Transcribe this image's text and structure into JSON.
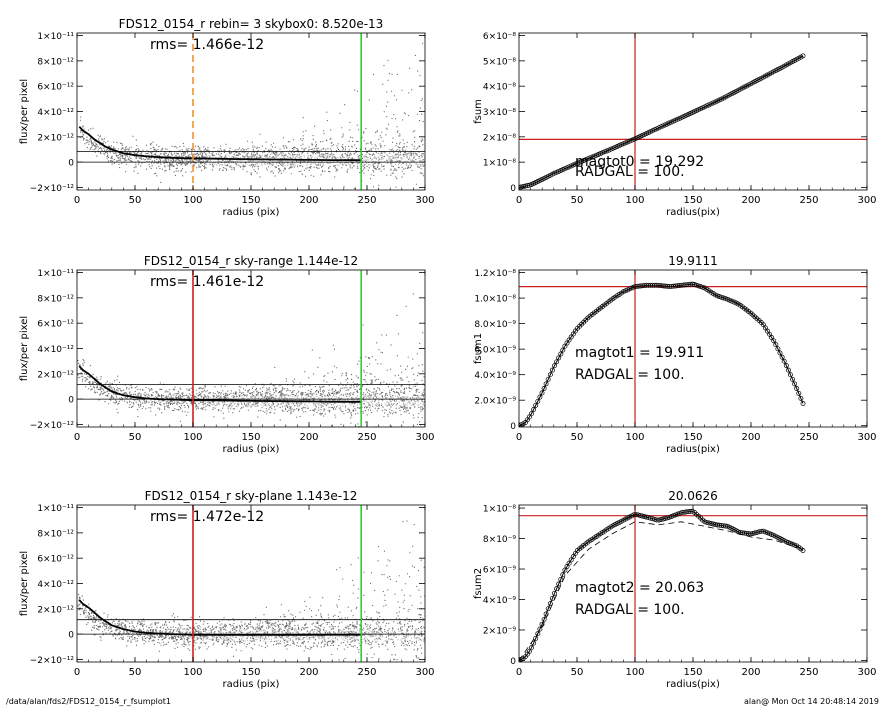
{
  "footer": {
    "left": "/data/alan/fds2/FDS12_0154_r_fsumplot1",
    "right": "alan@  Mon Oct 14 20:48:14 2019"
  },
  "colors": {
    "scatter_dark": "#6e6e6e",
    "scatter_light": "#b4b4b4",
    "profile": "#000000",
    "red": "#cc1f1f",
    "green": "#33cc33",
    "orange": "#f0932b"
  },
  "chart_data": [
    {
      "type": "scatter",
      "title": "FDS12_0154_r rebin= 3    skybox0:  8.520e-13",
      "annotation": "rms= 1.466e-12",
      "xlabel": "radius (pix)",
      "ylabel": "flux/per pixel",
      "xlim": [
        0,
        300
      ],
      "ylim": [
        -2.2e-12,
        1.02e-11
      ],
      "xticks": [
        0,
        50,
        100,
        150,
        200,
        250,
        300
      ],
      "xtick_labels": [
        "0",
        "50",
        "100",
        "150",
        "200",
        "250",
        "300"
      ],
      "yticks": [
        -2e-12,
        0,
        2e-12,
        4e-12,
        6e-12,
        8e-12,
        1e-11
      ],
      "ytick_labels": [
        "−2×10⁻¹²",
        "0",
        "2×10⁻¹²",
        "4×10⁻¹²",
        "6×10⁻¹²",
        "8×10⁻¹²",
        "1×10⁻¹¹"
      ],
      "hlines": [
        0,
        8.52e-13
      ],
      "vlines": [
        {
          "x": 100,
          "color": "orange",
          "dash": true
        },
        {
          "x": 245,
          "color": "green",
          "dash": false
        }
      ],
      "profile": {
        "x": [
          2,
          5,
          10,
          15,
          20,
          25,
          30,
          40,
          50,
          60,
          70,
          80,
          90,
          100,
          120,
          140,
          160,
          180,
          200,
          220,
          245
        ],
        "y": [
          2.8e-12,
          2.5e-12,
          2.2e-12,
          1.8e-12,
          1.5e-12,
          1.2e-12,
          1e-12,
          7e-13,
          5.5e-13,
          4.5e-13,
          4e-13,
          3.5e-13,
          3.2e-13,
          3e-13,
          2.7e-13,
          2.4e-13,
          2.2e-13,
          2e-13,
          1.8e-13,
          1.6e-13,
          1.5e-13
        ]
      },
      "scatter_model": {
        "n": 2300,
        "xmax": 300,
        "core_amp": 2.6e-12,
        "core_scale": 18,
        "offset": 2e-13,
        "noise": 5e-13,
        "outer_growth": 1.6e-12
      }
    },
    {
      "type": "line",
      "title": "",
      "annotations": [
        "magtot0 = 19.292",
        "RADGAL =    100."
      ],
      "xlabel": "radius(pix)",
      "ylabel": "fsum",
      "xlim": [
        0,
        300
      ],
      "ylim": [
        -1e-09,
        6.1e-08
      ],
      "xticks": [
        0,
        50,
        100,
        150,
        200,
        250,
        300
      ],
      "xtick_labels": [
        "0",
        "50",
        "100",
        "150",
        "200",
        "250",
        "300"
      ],
      "yticks": [
        0,
        1e-08,
        2e-08,
        3e-08,
        4e-08,
        5e-08,
        6e-08
      ],
      "ytick_labels": [
        "0",
        "1×10⁻⁸",
        "2×10⁻⁸",
        "3×10⁻⁸",
        "4×10⁻⁸",
        "5×10⁻⁸",
        "6×10⁻⁸"
      ],
      "hline": 1.9e-08,
      "vline": 100,
      "curve": {
        "x": [
          0,
          10,
          20,
          30,
          50,
          75,
          100,
          125,
          150,
          175,
          200,
          225,
          245
        ],
        "y": [
          0,
          1e-09,
          3.2e-09,
          5.5e-09,
          9.5e-09,
          1.43e-08,
          1.92e-08,
          2.45e-08,
          2.97e-08,
          3.5e-08,
          4.1e-08,
          4.7e-08,
          5.2e-08
        ]
      }
    },
    {
      "type": "scatter",
      "title": "FDS12_0154_r sky-range  1.144e-12",
      "annotation": "rms= 1.461e-12",
      "xlabel": "radius (pix)",
      "ylabel": "flux/per pixel",
      "xlim": [
        0,
        300
      ],
      "ylim": [
        -2.2e-12,
        1.02e-11
      ],
      "xticks": [
        0,
        50,
        100,
        150,
        200,
        250,
        300
      ],
      "xtick_labels": [
        "0",
        "50",
        "100",
        "150",
        "200",
        "250",
        "300"
      ],
      "yticks": [
        -2e-12,
        0,
        2e-12,
        4e-12,
        6e-12,
        8e-12,
        1e-11
      ],
      "ytick_labels": [
        "−2×10⁻¹²",
        "0",
        "2×10⁻¹²",
        "4×10⁻¹²",
        "6×10⁻¹²",
        "8×10⁻¹²",
        "1×10⁻¹¹"
      ],
      "hlines": [
        0,
        1.144e-12
      ],
      "vlines": [
        {
          "x": 100,
          "color": "red",
          "dash": false
        },
        {
          "x": 245,
          "color": "green",
          "dash": false
        }
      ],
      "profile": {
        "x": [
          2,
          5,
          10,
          15,
          20,
          25,
          30,
          40,
          50,
          60,
          70,
          80,
          90,
          100,
          120,
          140,
          160,
          180,
          200,
          220,
          245
        ],
        "y": [
          2.6e-12,
          2.3e-12,
          2e-12,
          1.6e-12,
          1.2e-12,
          9e-13,
          6e-13,
          3e-13,
          1.5e-13,
          5e-14,
          0,
          -3e-14,
          -5e-14,
          -8e-14,
          -1e-13,
          -1.2e-13,
          -1.5e-13,
          -1.6e-13,
          -1.8e-13,
          -2e-13,
          -2.1e-13
        ]
      },
      "scatter_model": {
        "n": 2300,
        "xmax": 300,
        "core_amp": 2.6e-12,
        "core_scale": 18,
        "offset": -1.2e-13,
        "noise": 5e-13,
        "outer_growth": 1.6e-12
      }
    },
    {
      "type": "line",
      "title": "19.9111",
      "annotations": [
        "magtot1 =  19.911",
        "RADGAL =    100."
      ],
      "xlabel": "radius(pix)",
      "ylabel": "fsum1",
      "xlim": [
        0,
        300
      ],
      "ylim": [
        -1e-10,
        1.22e-08
      ],
      "xticks": [
        0,
        50,
        100,
        150,
        200,
        250,
        300
      ],
      "xtick_labels": [
        "0",
        "50",
        "100",
        "150",
        "200",
        "250",
        "300"
      ],
      "yticks": [
        0,
        2e-09,
        4e-09,
        6e-09,
        8e-09,
        1e-08,
        1.2e-08
      ],
      "ytick_labels": [
        "0",
        "2.0×10⁻⁹",
        "4.0×10⁻⁹",
        "6.0×10⁻⁹",
        "8.0×10⁻⁹",
        "1.0×10⁻⁸",
        "1.2×10⁻⁸"
      ],
      "hline": 1.09e-08,
      "vline": 100,
      "curve": {
        "x": [
          0,
          5,
          10,
          20,
          30,
          40,
          50,
          60,
          70,
          80,
          90,
          100,
          110,
          120,
          130,
          140,
          150,
          160,
          170,
          180,
          190,
          200,
          210,
          220,
          230,
          240,
          245
        ],
        "y": [
          0,
          2e-10,
          8e-10,
          2.6e-09,
          4.6e-09,
          6.3e-09,
          7.6e-09,
          8.5e-09,
          9.2e-09,
          9.9e-09,
          1.05e-08,
          1.09e-08,
          1.1e-08,
          1.1e-08,
          1.09e-08,
          1.1e-08,
          1.11e-08,
          1.08e-08,
          1.02e-08,
          9.9e-09,
          9.5e-09,
          8.8e-09,
          8e-09,
          6.6e-09,
          4.8e-09,
          2.8e-09,
          1.7e-09
        ]
      }
    },
    {
      "type": "scatter",
      "title": "FDS12_0154_r sky-plane  1.143e-12",
      "annotation": "rms= 1.472e-12",
      "xlabel": "radius (pix)",
      "ylabel": "flux/per pixel",
      "xlim": [
        0,
        300
      ],
      "ylim": [
        -2.2e-12,
        1.02e-11
      ],
      "xticks": [
        0,
        50,
        100,
        150,
        200,
        250,
        300
      ],
      "xtick_labels": [
        "0",
        "50",
        "100",
        "150",
        "200",
        "250",
        "300"
      ],
      "yticks": [
        -2e-12,
        0,
        2e-12,
        4e-12,
        6e-12,
        8e-12,
        1e-11
      ],
      "ytick_labels": [
        "−2×10⁻¹²",
        "0",
        "2×10⁻¹²",
        "4×10⁻¹²",
        "6×10⁻¹²",
        "8×10⁻¹²",
        "1×10⁻¹¹"
      ],
      "hlines": [
        0,
        1.143e-12
      ],
      "vlines": [
        {
          "x": 100,
          "color": "red",
          "dash": false
        },
        {
          "x": 245,
          "color": "green",
          "dash": false
        }
      ],
      "profile": {
        "x": [
          2,
          5,
          10,
          15,
          20,
          25,
          30,
          40,
          50,
          60,
          70,
          80,
          90,
          100,
          120,
          140,
          160,
          180,
          200,
          220,
          245
        ],
        "y": [
          2.7e-12,
          2.4e-12,
          2.1e-12,
          1.7e-12,
          1.3e-12,
          1e-12,
          7e-13,
          4e-13,
          2e-13,
          1e-13,
          5e-14,
          0,
          -2e-14,
          -4e-14,
          -5e-14,
          -6e-14,
          -5e-14,
          -6e-14,
          -5e-14,
          -4e-14,
          -4e-14
        ]
      },
      "scatter_model": {
        "n": 2300,
        "xmax": 300,
        "core_amp": 2.6e-12,
        "core_scale": 18,
        "offset": -5e-14,
        "noise": 5e-13,
        "outer_growth": 1.6e-12
      }
    },
    {
      "type": "line",
      "title": "20.0626",
      "annotations": [
        "magtot2 =  20.063",
        "RADGAL =    100."
      ],
      "xlabel": "radius(pix)",
      "ylabel": "fsum2",
      "xlim": [
        0,
        300
      ],
      "ylim": [
        -1e-10,
        1.02e-08
      ],
      "xticks": [
        0,
        50,
        100,
        150,
        200,
        250,
        300
      ],
      "xtick_labels": [
        "0",
        "50",
        "100",
        "150",
        "200",
        "250",
        "300"
      ],
      "yticks": [
        0,
        2e-09,
        4e-09,
        6e-09,
        8e-09,
        1e-08
      ],
      "ytick_labels": [
        "0",
        "2×10⁻⁹",
        "4×10⁻⁹",
        "6×10⁻⁹",
        "8×10⁻⁹",
        "1×10⁻⁸"
      ],
      "hline": 9.5e-09,
      "vline": 100,
      "curve": {
        "x": [
          0,
          5,
          10,
          20,
          30,
          40,
          50,
          60,
          70,
          80,
          90,
          100,
          110,
          120,
          130,
          140,
          150,
          160,
          170,
          180,
          190,
          200,
          210,
          220,
          230,
          240,
          245
        ],
        "y": [
          0,
          2e-10,
          7e-10,
          2.4e-09,
          4.3e-09,
          6e-09,
          7.2e-09,
          7.8e-09,
          8.3e-09,
          8.8e-09,
          9.2e-09,
          9.6e-09,
          9.4e-09,
          9.2e-09,
          9.4e-09,
          9.7e-09,
          9.8e-09,
          9.1e-09,
          8.9e-09,
          8.8e-09,
          8.4e-09,
          8.3e-09,
          8.5e-09,
          8.2e-09,
          7.8e-09,
          7.5e-09,
          7.2e-09
        ]
      },
      "dashed_curve": {
        "x": [
          0,
          20,
          40,
          60,
          80,
          100,
          120,
          140,
          160,
          180,
          200,
          220,
          240
        ],
        "y": [
          0,
          2.2e-09,
          5.6e-09,
          7.3e-09,
          8.3e-09,
          9.1e-09,
          8.9e-09,
          9.1e-09,
          8.8e-09,
          8.5e-09,
          8.1e-09,
          7.9e-09,
          7.4e-09
        ]
      }
    }
  ]
}
